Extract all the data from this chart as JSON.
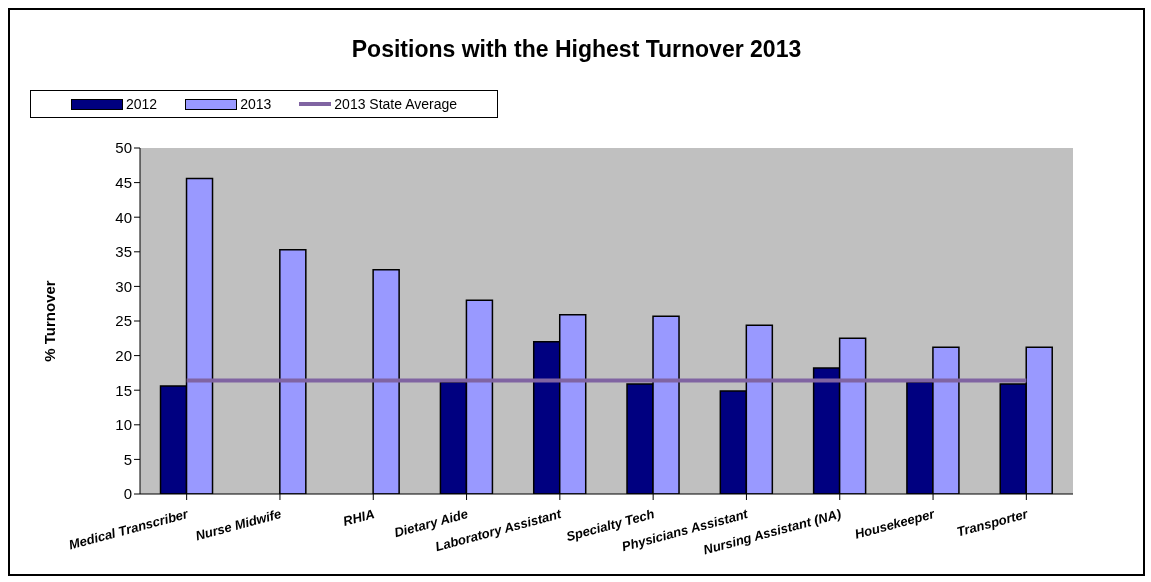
{
  "chart_data": {
    "type": "bar",
    "title": "Positions with the Highest Turnover 2013",
    "ylabel": "% Turnover",
    "categories": [
      "Medical Transcriber",
      "Nurse Midwife",
      "RHIA",
      "Dietary Aide",
      "Laboratory Assistant",
      "Specialty Tech",
      "Physicians Assistant",
      "Nursing Assistant (NA)",
      "Housekeeper",
      "Transporter"
    ],
    "series": [
      {
        "name": "2012",
        "color": "#000080",
        "values": [
          15.6,
          null,
          null,
          16.2,
          22,
          15.9,
          14.9,
          18.2,
          16.2,
          15.9
        ]
      },
      {
        "name": "2013",
        "color": "#9999ff",
        "values": [
          45.6,
          35.3,
          32.4,
          28,
          25.9,
          25.7,
          24.4,
          22.5,
          21.2,
          21.2
        ]
      },
      {
        "name": "2013 State Average",
        "type": "line",
        "color": "#8064a2",
        "values": [
          16.4,
          16.4,
          16.4,
          16.4,
          16.4,
          16.4,
          16.4,
          16.4,
          16.4,
          16.4
        ]
      }
    ],
    "ylim": [
      0,
      50
    ],
    "yticks": [
      0,
      5,
      10,
      15,
      20,
      25,
      30,
      35,
      40,
      45,
      50
    ],
    "grid": false,
    "legend": "top",
    "marker": "none"
  }
}
